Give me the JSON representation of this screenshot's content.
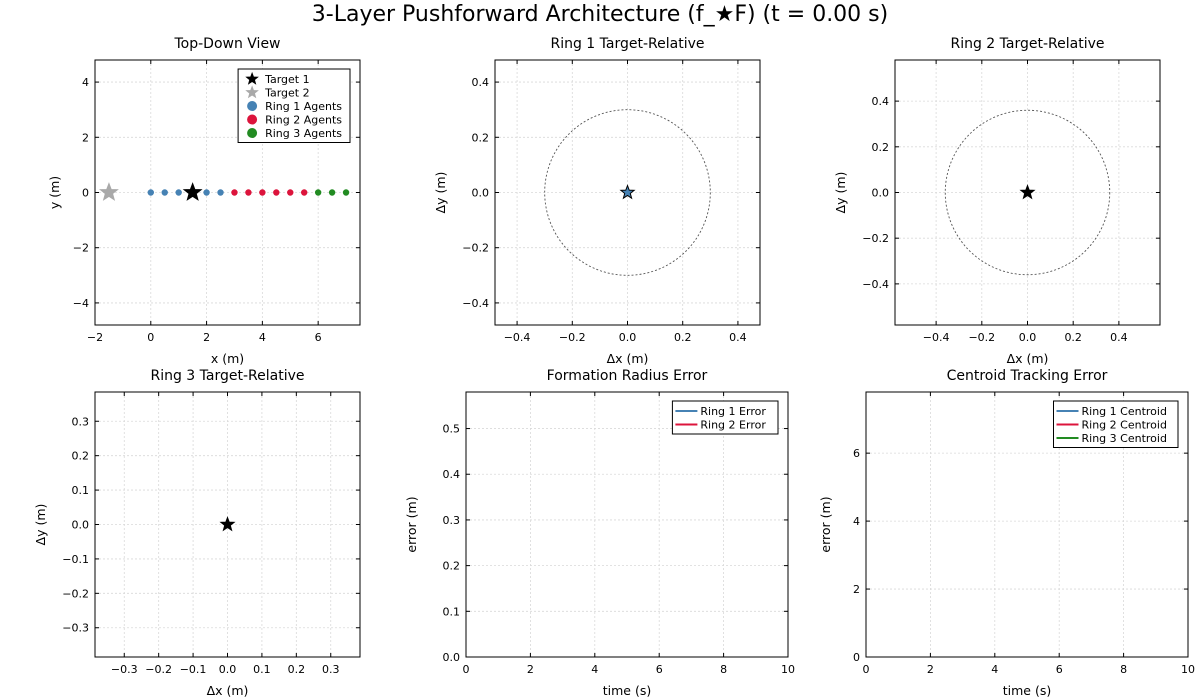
{
  "title": "3-Layer Pushforward Architecture (f_★F) (t = 0.00 s)",
  "colors": {
    "ring1": "#4682B4",
    "ring2": "#DC143C",
    "ring3": "#228B22",
    "target1": "#000000",
    "target2": "#A9A9A9",
    "grid": "#d9d9d9",
    "circle": "#555555"
  },
  "chart_data": [
    {
      "id": "topdown",
      "type": "scatter",
      "title": "Top-Down View",
      "xlabel": "x (m)",
      "ylabel": "y (m)",
      "xlim": [
        -2.0,
        7.5
      ],
      "ylim": [
        -4.8,
        4.8
      ],
      "xticks": [
        -2,
        0,
        2,
        4,
        6
      ],
      "yticks": [
        -4,
        -2,
        0,
        2,
        4
      ],
      "grid": true,
      "legend_position": "top-right",
      "series": [
        {
          "name": "Target 1",
          "marker": "star",
          "color": "#000000",
          "outline": "#000000",
          "size": 9,
          "points": [
            [
              1.5,
              0.0
            ]
          ]
        },
        {
          "name": "Target 2",
          "marker": "star",
          "color": "#A9A9A9",
          "outline": "#A9A9A9",
          "size": 9,
          "points": [
            [
              -1.5,
              0.0
            ]
          ]
        },
        {
          "name": "Ring 1 Agents",
          "marker": "circle",
          "color": "#4682B4",
          "size": 3.2,
          "points": [
            [
              0.0,
              0.0
            ],
            [
              0.5,
              0.0
            ],
            [
              1.0,
              0.0
            ],
            [
              2.0,
              0.0
            ],
            [
              2.5,
              0.0
            ]
          ]
        },
        {
          "name": "Ring 2 Agents",
          "marker": "circle",
          "color": "#DC143C",
          "size": 3.2,
          "points": [
            [
              3.0,
              0.0
            ],
            [
              3.5,
              0.0
            ],
            [
              4.0,
              0.0
            ],
            [
              4.5,
              0.0
            ],
            [
              5.0,
              0.0
            ],
            [
              5.5,
              0.0
            ]
          ]
        },
        {
          "name": "Ring 3 Agents",
          "marker": "circle",
          "color": "#228B22",
          "size": 3.2,
          "points": [
            [
              6.0,
              0.0
            ],
            [
              6.5,
              0.0
            ],
            [
              7.0,
              0.0
            ]
          ]
        }
      ]
    },
    {
      "id": "ring1rel",
      "type": "scatter",
      "title": "Ring 1 Target-Relative",
      "xlabel": "Δx (m)",
      "ylabel": "Δy (m)",
      "xlim": [
        -0.48,
        0.48
      ],
      "ylim": [
        -0.48,
        0.48
      ],
      "xticks": [
        -0.4,
        -0.2,
        0.0,
        0.2,
        0.4
      ],
      "yticks": [
        -0.4,
        -0.2,
        0.0,
        0.2,
        0.4
      ],
      "grid": true,
      "reference_circle_radius": 0.3,
      "series": [
        {
          "marker": "star",
          "color": "#4682B4",
          "outline": "#000000",
          "size": 7,
          "points": [
            [
              0.0,
              0.0
            ]
          ]
        }
      ]
    },
    {
      "id": "ring2rel",
      "type": "scatter",
      "title": "Ring 2 Target-Relative",
      "xlabel": "Δx (m)",
      "ylabel": "Δy (m)",
      "xlim": [
        -0.58,
        0.58
      ],
      "ylim": [
        -0.58,
        0.58
      ],
      "xticks": [
        -0.4,
        -0.2,
        0.0,
        0.2,
        0.4
      ],
      "yticks": [
        -0.4,
        -0.2,
        0.0,
        0.2,
        0.4
      ],
      "grid": true,
      "reference_circle_radius": 0.36,
      "series": [
        {
          "marker": "star",
          "color": "#000000",
          "outline": "#000000",
          "size": 7,
          "points": [
            [
              0.0,
              0.0
            ]
          ]
        }
      ]
    },
    {
      "id": "ring3rel",
      "type": "scatter",
      "title": "Ring 3 Target-Relative",
      "xlabel": "Δx (m)",
      "ylabel": "Δy (m)",
      "xlim": [
        -0.385,
        0.385
      ],
      "ylim": [
        -0.385,
        0.385
      ],
      "xticks": [
        -0.3,
        -0.2,
        -0.1,
        0.0,
        0.1,
        0.2,
        0.3
      ],
      "yticks": [
        -0.3,
        -0.2,
        -0.1,
        0.0,
        0.1,
        0.2,
        0.3
      ],
      "grid": true,
      "series": [
        {
          "marker": "star",
          "color": "#000000",
          "outline": "#000000",
          "size": 7,
          "points": [
            [
              0.0,
              0.0
            ]
          ]
        }
      ]
    },
    {
      "id": "radiuserr",
      "type": "line",
      "title": "Formation Radius Error",
      "xlabel": "time (s)",
      "ylabel": "error (m)",
      "xlim": [
        0,
        10
      ],
      "ylim": [
        0,
        0.58
      ],
      "xticks": [
        0,
        2,
        4,
        6,
        8,
        10
      ],
      "yticks": [
        0.0,
        0.1,
        0.2,
        0.3,
        0.4,
        0.5
      ],
      "grid": true,
      "legend_position": "top-right",
      "series": [
        {
          "name": "Ring 1 Error",
          "color": "#4682B4",
          "values": []
        },
        {
          "name": "Ring 2 Error",
          "color": "#DC143C",
          "values": []
        }
      ]
    },
    {
      "id": "centroiderr",
      "type": "line",
      "title": "Centroid Tracking Error",
      "xlabel": "time (s)",
      "ylabel": "error (m)",
      "xlim": [
        0,
        10
      ],
      "ylim": [
        0,
        7.8
      ],
      "xticks": [
        0,
        2,
        4,
        6,
        8,
        10
      ],
      "yticks": [
        0,
        2,
        4,
        6
      ],
      "grid": true,
      "legend_position": "top-right",
      "series": [
        {
          "name": "Ring 1 Centroid",
          "color": "#4682B4",
          "values": []
        },
        {
          "name": "Ring 2 Centroid",
          "color": "#DC143C",
          "values": []
        },
        {
          "name": "Ring 3 Centroid",
          "color": "#228B22",
          "values": []
        }
      ]
    }
  ]
}
